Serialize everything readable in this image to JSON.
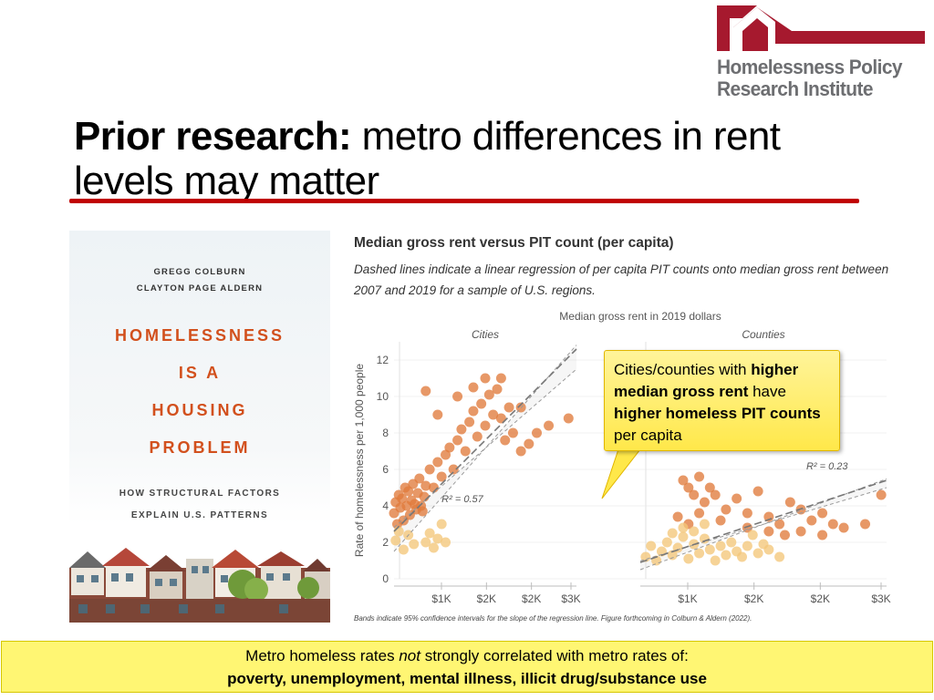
{
  "logo": {
    "line1": "Homelessness Policy",
    "line2": "Research Institute",
    "colors": {
      "roof": "#a6192e",
      "text": "#6d6e71"
    }
  },
  "slide": {
    "title_bold": "Prior research:",
    "title_rest": " metro differences in rent levels may matter",
    "rule_color": "#c00000"
  },
  "book": {
    "author1": "GREGG COLBURN",
    "author2": "CLAYTON PAGE ALDERN",
    "title_lines": [
      "HOMELESSNESS",
      "IS A",
      "HOUSING",
      "PROBLEM"
    ],
    "subtitle_lines": [
      "HOW STRUCTURAL FACTORS",
      "EXPLAIN U.S. PATTERNS"
    ],
    "title_color": "#d2501d"
  },
  "figure": {
    "title": "Median gross rent versus PIT count (per capita)",
    "subtitle": "Dashed lines indicate a linear regression of per capita PIT counts onto median gross rent between 2007 and 2019 for a sample of U.S. regions.",
    "footnote": "Bands indicate 95% confidence intervals for the slope of the regression line. Figure forthcoming in Colburn & Aldern (2022)."
  },
  "chart_data": [
    {
      "type": "scatter",
      "title": "Cities",
      "xlabel": "Median gross rent in 2019 dollars",
      "ylabel": "Rate of homelessness per 1,000 people",
      "x_ticks": [
        "$1K",
        "$2K",
        "$2K",
        "$3K"
      ],
      "xlim": [
        700,
        3000
      ],
      "ylim": [
        0,
        13
      ],
      "y_ticks": [
        "0",
        "2",
        "4",
        "6",
        "8",
        "10",
        "12"
      ],
      "annotation": "R² = 0.57",
      "series": [
        {
          "color": "#e07b3c",
          "points": [
            [
              700,
              3.6
            ],
            [
              720,
              4.2
            ],
            [
              740,
              3.0
            ],
            [
              760,
              4.6
            ],
            [
              780,
              3.9
            ],
            [
              800,
              4.4
            ],
            [
              820,
              3.2
            ],
            [
              840,
              5.0
            ],
            [
              860,
              4.0
            ],
            [
              880,
              4.8
            ],
            [
              900,
              3.5
            ],
            [
              920,
              4.3
            ],
            [
              940,
              5.2
            ],
            [
              960,
              4.1
            ],
            [
              980,
              3.8
            ],
            [
              1000,
              4.7
            ],
            [
              1020,
              5.5
            ],
            [
              1040,
              4.0
            ],
            [
              1060,
              3.7
            ],
            [
              1080,
              4.5
            ],
            [
              1100,
              5.1
            ],
            [
              1150,
              6.0
            ],
            [
              1200,
              5.0
            ],
            [
              1250,
              6.4
            ],
            [
              1300,
              5.6
            ],
            [
              1350,
              6.8
            ],
            [
              1400,
              7.2
            ],
            [
              1450,
              6.0
            ],
            [
              1500,
              7.6
            ],
            [
              1550,
              8.2
            ],
            [
              1600,
              7.0
            ],
            [
              1650,
              8.6
            ],
            [
              1700,
              9.2
            ],
            [
              1750,
              7.8
            ],
            [
              1800,
              9.6
            ],
            [
              1850,
              8.4
            ],
            [
              1900,
              10.1
            ],
            [
              1950,
              9.0
            ],
            [
              2000,
              10.4
            ],
            [
              2050,
              8.8
            ],
            [
              2100,
              7.6
            ],
            [
              2150,
              9.4
            ],
            [
              2200,
              8.0
            ],
            [
              2300,
              7.0
            ],
            [
              2400,
              7.4
            ],
            [
              2500,
              8.0
            ],
            [
              2650,
              8.4
            ],
            [
              2900,
              8.8
            ],
            [
              1100,
              10.3
            ],
            [
              1250,
              9.0
            ],
            [
              1500,
              10.0
            ],
            [
              1700,
              10.5
            ],
            [
              1850,
              11.0
            ],
            [
              2050,
              11.0
            ],
            [
              2300,
              9.4
            ]
          ]
        },
        {
          "color": "#f3c77a",
          "points": [
            [
              720,
              2.1
            ],
            [
              760,
              2.6
            ],
            [
              820,
              1.6
            ],
            [
              880,
              2.4
            ],
            [
              950,
              1.9
            ],
            [
              1100,
              2.0
            ],
            [
              1150,
              2.5
            ],
            [
              1200,
              1.7
            ],
            [
              1250,
              2.2
            ],
            [
              1300,
              3.0
            ],
            [
              1350,
              2.0
            ]
          ]
        }
      ],
      "regression": {
        "x": [
          700,
          3000
        ],
        "y": [
          2.6,
          12.6
        ]
      }
    },
    {
      "type": "scatter",
      "title": "Counties",
      "xlabel": "Median gross rent in 2019 dollars",
      "ylabel": "",
      "x_ticks": [
        "$1K",
        "$2K",
        "$2K",
        "$3K"
      ],
      "xlim": [
        700,
        3000
      ],
      "ylim": [
        0,
        13
      ],
      "annotation": "R² = 0.23",
      "series": [
        {
          "color": "#e07b3c",
          "points": [
            [
              1100,
              5.4
            ],
            [
              1150,
              5.0
            ],
            [
              1200,
              4.6
            ],
            [
              1250,
              5.6
            ],
            [
              1300,
              4.2
            ],
            [
              1350,
              5.0
            ],
            [
              1400,
              4.6
            ],
            [
              1500,
              3.8
            ],
            [
              1600,
              4.4
            ],
            [
              1700,
              3.6
            ],
            [
              1800,
              4.8
            ],
            [
              1900,
              3.4
            ],
            [
              2000,
              3.0
            ],
            [
              2100,
              4.2
            ],
            [
              2200,
              3.8
            ],
            [
              2300,
              3.2
            ],
            [
              2400,
              3.6
            ],
            [
              2500,
              3.0
            ],
            [
              2600,
              2.8
            ],
            [
              2800,
              3.0
            ],
            [
              2950,
              4.6
            ],
            [
              1050,
              3.4
            ],
            [
              1150,
              3.0
            ],
            [
              1250,
              3.6
            ],
            [
              1450,
              3.2
            ],
            [
              1700,
              2.8
            ],
            [
              1900,
              2.6
            ],
            [
              2050,
              2.4
            ],
            [
              2200,
              2.6
            ],
            [
              2400,
              2.4
            ]
          ]
        },
        {
          "color": "#f3c77a",
          "points": [
            [
              750,
              1.2
            ],
            [
              800,
              1.8
            ],
            [
              850,
              1.0
            ],
            [
              900,
              1.5
            ],
            [
              950,
              2.0
            ],
            [
              1000,
              1.3
            ],
            [
              1050,
              1.7
            ],
            [
              1100,
              2.3
            ],
            [
              1150,
              1.1
            ],
            [
              1200,
              1.9
            ],
            [
              1250,
              1.4
            ],
            [
              1300,
              2.2
            ],
            [
              1350,
              1.6
            ],
            [
              1400,
              1.0
            ],
            [
              1450,
              1.8
            ],
            [
              1500,
              1.3
            ],
            [
              1550,
              2.0
            ],
            [
              1600,
              1.5
            ],
            [
              1650,
              1.2
            ],
            [
              1700,
              1.8
            ],
            [
              1750,
              2.4
            ],
            [
              1800,
              1.4
            ],
            [
              1850,
              1.9
            ],
            [
              1900,
              1.6
            ],
            [
              2000,
              1.2
            ],
            [
              1100,
              2.8
            ],
            [
              1200,
              2.6
            ],
            [
              1300,
              3.0
            ],
            [
              1000,
              2.5
            ]
          ]
        }
      ],
      "regression": {
        "x": [
          700,
          3000
        ],
        "y": [
          0.9,
          5.4
        ]
      }
    }
  ],
  "callout": {
    "p1": "Cities/counties with ",
    "b1": "higher median gross rent",
    "p2": " have ",
    "b2": "higher homeless PIT counts",
    "p3": " per capita",
    "color": "#ffe84a"
  },
  "footer": {
    "line1_pre": "Metro homeless rates ",
    "line1_em": "not",
    "line1_post": " strongly correlated with metro rates of:",
    "line2": "poverty, unemployment, mental illness, illicit drug/substance use",
    "color": "#fff673"
  }
}
